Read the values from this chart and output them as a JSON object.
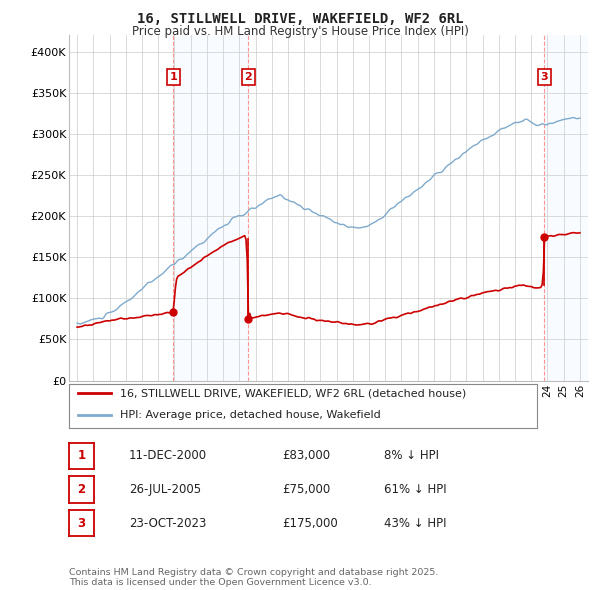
{
  "title": "16, STILLWELL DRIVE, WAKEFIELD, WF2 6RL",
  "subtitle": "Price paid vs. HM Land Registry's House Price Index (HPI)",
  "ylim": [
    0,
    420000
  ],
  "xlim_start": 1994.5,
  "xlim_end": 2026.5,
  "yticks": [
    0,
    50000,
    100000,
    150000,
    200000,
    250000,
    300000,
    350000,
    400000
  ],
  "ytick_labels": [
    "£0",
    "£50K",
    "£100K",
    "£150K",
    "£200K",
    "£250K",
    "£300K",
    "£350K",
    "£400K"
  ],
  "background_color": "#ffffff",
  "plot_bg_color": "#ffffff",
  "grid_color": "#cccccc",
  "red_line_color": "#cc0000",
  "blue_line_color": "#7faacc",
  "shade_color": "#ddeeff",
  "vline_color": "#ff8888",
  "hatch_color": "#aaaaaa",
  "transactions": [
    {
      "date": 2000.94,
      "price": 83000,
      "label": "1"
    },
    {
      "date": 2005.56,
      "price": 75000,
      "label": "2"
    },
    {
      "date": 2023.81,
      "price": 175000,
      "label": "3"
    }
  ],
  "legend_entries": [
    {
      "label": "16, STILLWELL DRIVE, WAKEFIELD, WF2 6RL (detached house)",
      "color": "#cc0000"
    },
    {
      "label": "HPI: Average price, detached house, Wakefield",
      "color": "#7faacc"
    }
  ],
  "table_rows": [
    {
      "num": "1",
      "date": "11-DEC-2000",
      "price": "£83,000",
      "hpi": "8% ↓ HPI"
    },
    {
      "num": "2",
      "date": "26-JUL-2005",
      "price": "£75,000",
      "hpi": "61% ↓ HPI"
    },
    {
      "num": "3",
      "date": "23-OCT-2023",
      "price": "£175,000",
      "hpi": "43% ↓ HPI"
    }
  ],
  "footer": "Contains HM Land Registry data © Crown copyright and database right 2025.\nThis data is licensed under the Open Government Licence v3.0."
}
